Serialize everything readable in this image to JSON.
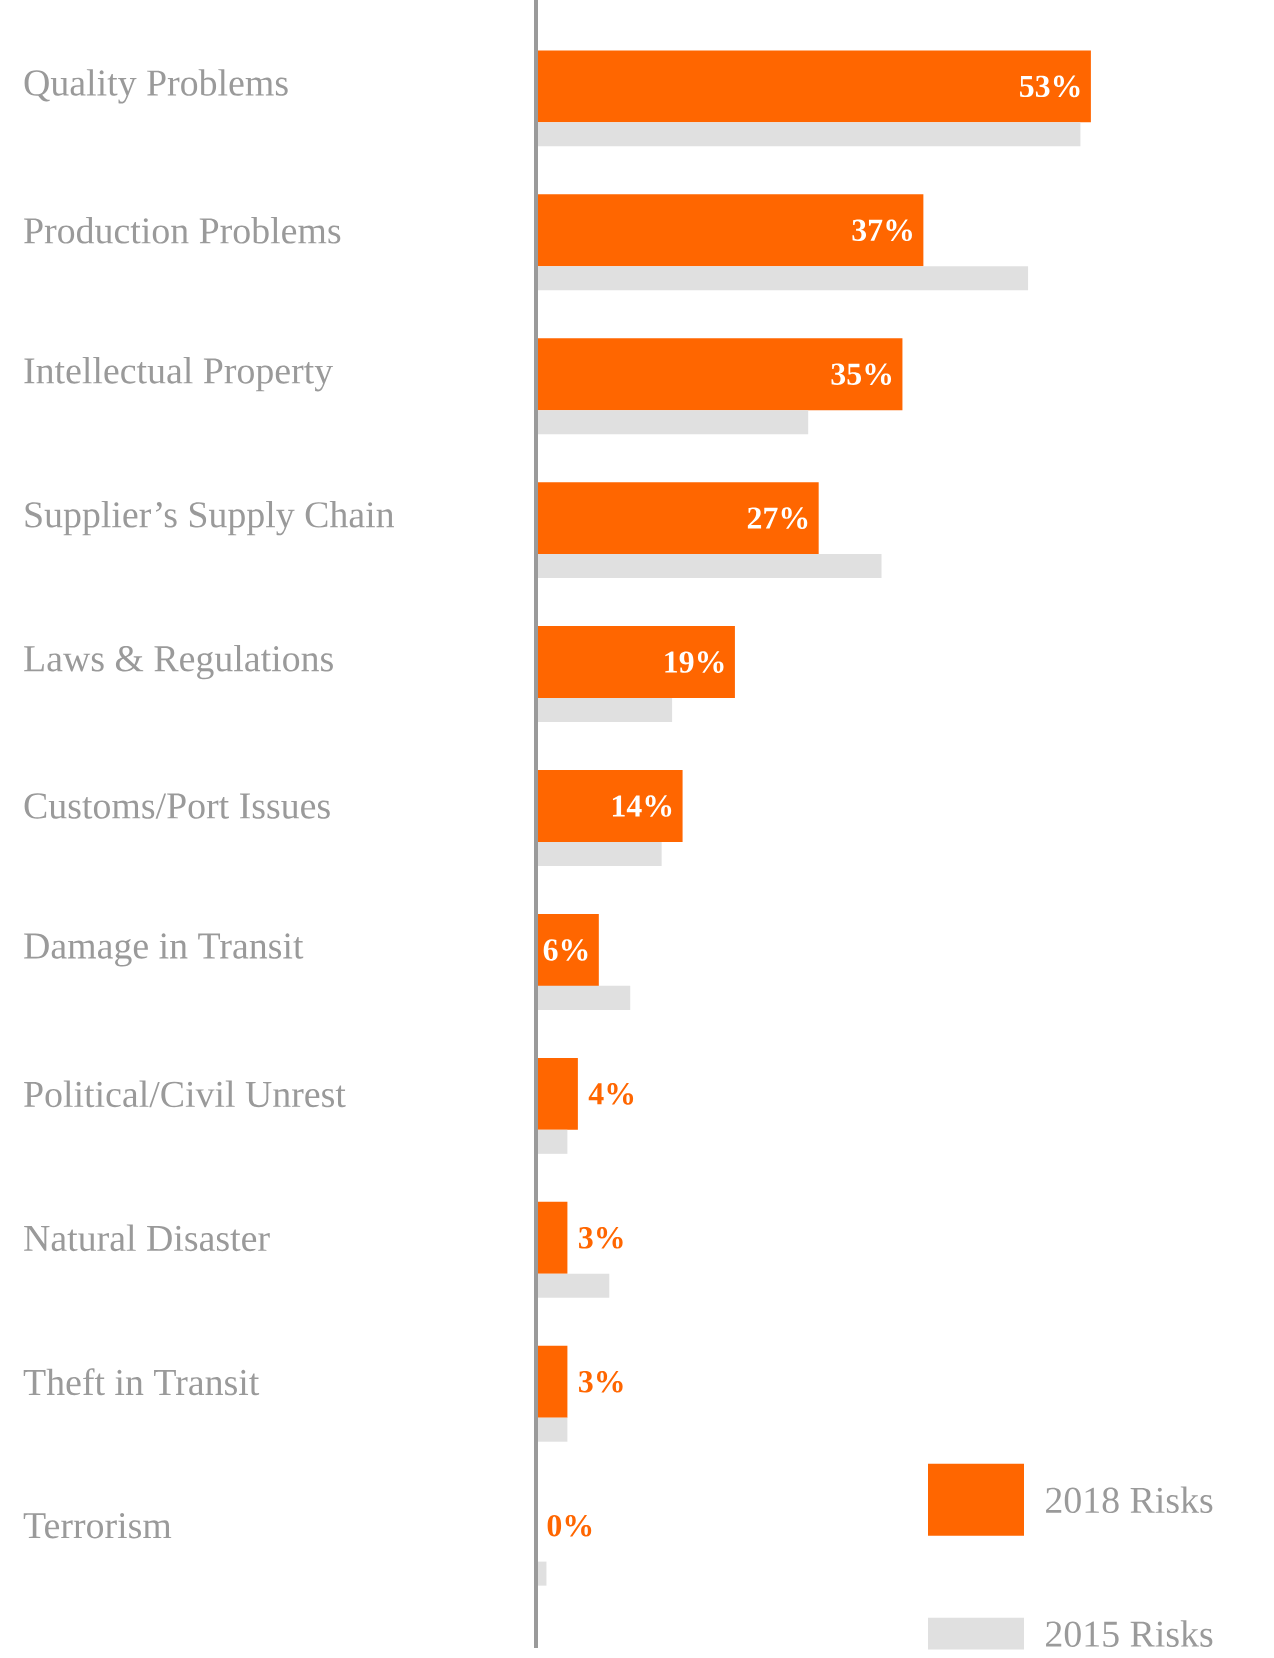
{
  "chart_data": {
    "type": "bar",
    "orientation": "horizontal",
    "legend": "bottom right",
    "categories": [
      "Quality Problems",
      "Production Problems",
      "Intellectual Property",
      "Supplier’s Supply Chain",
      "Laws & Regulations",
      "Customs/Port Issues",
      "Damage in Transit",
      "Political/Civil Unrest",
      "Natural Disaster",
      "Theft in Transit",
      "Terrorism"
    ],
    "series": [
      {
        "name": "2018 Risks",
        "color": "#ff6600",
        "values": [
          53,
          37,
          35,
          27,
          19,
          14,
          6,
          4,
          3,
          3,
          0
        ],
        "value_labels": [
          "53%",
          "37%",
          "35%",
          "27%",
          "19%",
          "14%",
          "6%",
          "4%",
          "3%",
          "3%",
          "0%"
        ]
      },
      {
        "name": "2015 Risks",
        "color": "#e0e0e0",
        "values": [
          52,
          47,
          26,
          33,
          13,
          12,
          9,
          3,
          7,
          3,
          1
        ]
      }
    ]
  }
}
